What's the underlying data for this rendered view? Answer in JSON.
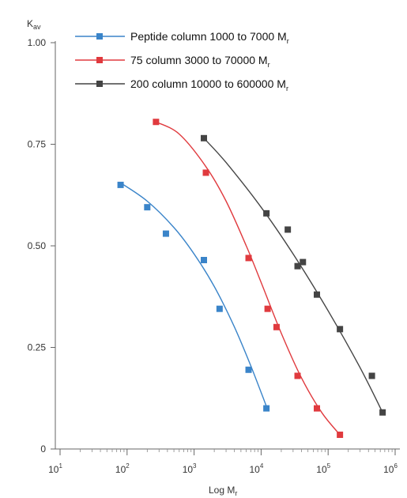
{
  "chart_data": {
    "type": "line",
    "ylabel_main": "K",
    "ylabel_sub": "av",
    "xlabel_main": "Log M",
    "xlabel_sub": "r",
    "xscale": "log",
    "xlim": [
      10,
      1000000
    ],
    "ylim": [
      0,
      1.0
    ],
    "y_ticks": [
      0,
      0.25,
      0.5,
      0.75,
      1.0
    ],
    "y_tick_labels": [
      "0",
      "0.25",
      "0.50",
      "0.75",
      "1.00"
    ],
    "x_ticks": [
      10,
      100,
      1000,
      10000,
      100000,
      1000000
    ],
    "x_tick_base": "10",
    "x_tick_exps": [
      "1",
      "2",
      "3",
      "4",
      "5",
      "6"
    ],
    "grid": false,
    "legend_position": "top",
    "series": [
      {
        "name_main": "Peptide column 1000 to 7000 M",
        "name_sub": "r",
        "color": "#3a84c9",
        "points": [
          [
            80,
            0.65
          ],
          [
            200,
            0.595
          ],
          [
            380,
            0.53
          ],
          [
            1400,
            0.465
          ],
          [
            2400,
            0.345
          ],
          [
            6500,
            0.195
          ],
          [
            12000,
            0.1
          ]
        ],
        "curve": [
          [
            80,
            0.655
          ],
          [
            200,
            0.61
          ],
          [
            500,
            0.545
          ],
          [
            1000,
            0.48
          ],
          [
            2000,
            0.4
          ],
          [
            4000,
            0.3
          ],
          [
            7000,
            0.205
          ],
          [
            12000,
            0.105
          ]
        ]
      },
      {
        "name_main": "75 column 3000 to 70000 M",
        "name_sub": "r",
        "color": "#e03a3e",
        "points": [
          [
            270,
            0.805
          ],
          [
            1500,
            0.68
          ],
          [
            6500,
            0.47
          ],
          [
            12500,
            0.345
          ],
          [
            17000,
            0.3
          ],
          [
            35000,
            0.18
          ],
          [
            68000,
            0.1
          ],
          [
            150000,
            0.035
          ]
        ],
        "curve": [
          [
            270,
            0.805
          ],
          [
            600,
            0.775
          ],
          [
            1500,
            0.695
          ],
          [
            3000,
            0.61
          ],
          [
            6000,
            0.5
          ],
          [
            10000,
            0.41
          ],
          [
            20000,
            0.285
          ],
          [
            40000,
            0.175
          ],
          [
            80000,
            0.09
          ],
          [
            150000,
            0.035
          ]
        ]
      },
      {
        "name_main": "200 column 10000 to 600000 M",
        "name_sub": "r",
        "color": "#444444",
        "points": [
          [
            1400,
            0.765
          ],
          [
            12000,
            0.58
          ],
          [
            25000,
            0.54
          ],
          [
            35000,
            0.45
          ],
          [
            42000,
            0.46
          ],
          [
            68000,
            0.38
          ],
          [
            150000,
            0.295
          ],
          [
            450000,
            0.18
          ],
          [
            650000,
            0.09
          ]
        ],
        "curve": [
          [
            1400,
            0.765
          ],
          [
            3000,
            0.705
          ],
          [
            10000,
            0.595
          ],
          [
            30000,
            0.48
          ],
          [
            100000,
            0.34
          ],
          [
            300000,
            0.2
          ],
          [
            650000,
            0.09
          ]
        ]
      }
    ]
  }
}
